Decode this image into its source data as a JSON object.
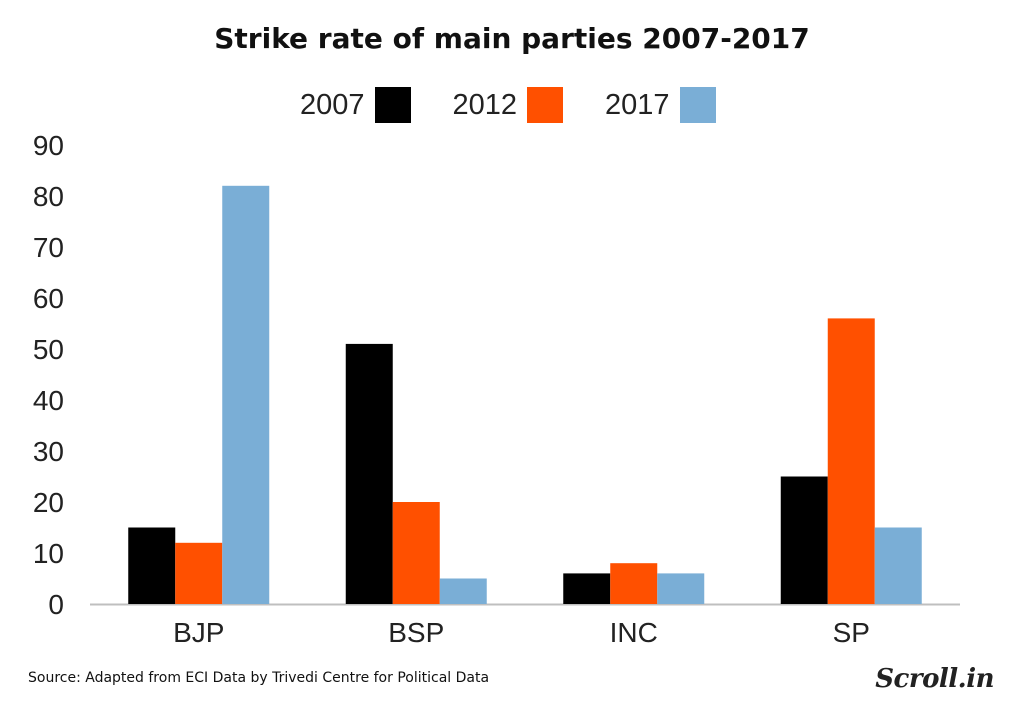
{
  "chart_data": {
    "type": "bar",
    "title": "Strike rate of main parties 2007-2017",
    "categories": [
      "BJP",
      "BSP",
      "INC",
      "SP"
    ],
    "series": [
      {
        "name": "2007",
        "color": "#000000",
        "values": [
          15,
          51,
          6,
          25
        ]
      },
      {
        "name": "2012",
        "color": "#ff5000",
        "values": [
          12,
          20,
          8,
          56
        ]
      },
      {
        "name": "2017",
        "color": "#7aaed6",
        "values": [
          82,
          5,
          6,
          15
        ]
      }
    ],
    "ylim": [
      0,
      90
    ],
    "yticks": [
      0,
      10,
      20,
      30,
      40,
      50,
      60,
      70,
      80,
      90
    ],
    "grid": false,
    "legend_position": "top"
  },
  "source": "Source: Adapted from ECI Data by Trivedi Centre for Political Data",
  "logo": "Scroll.in"
}
